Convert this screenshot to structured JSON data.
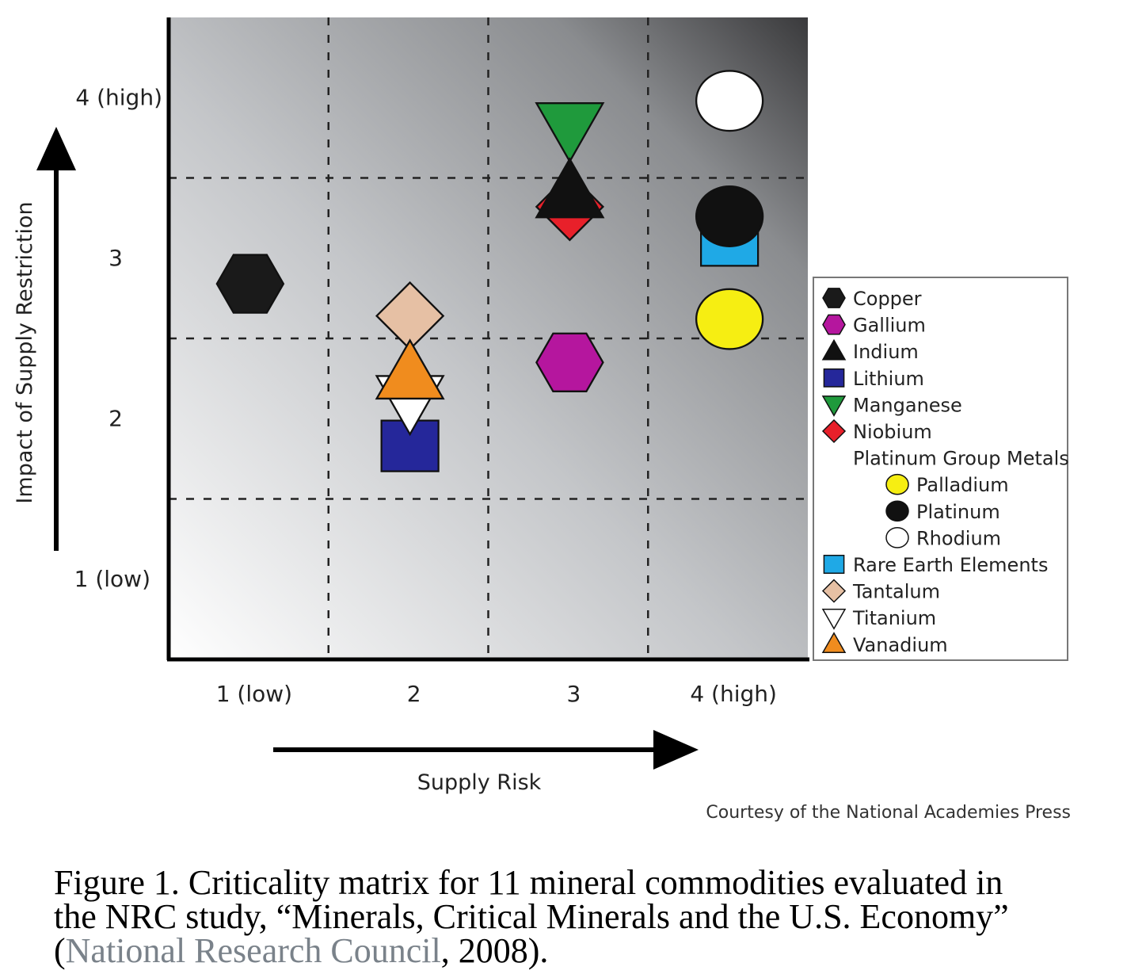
{
  "chart_data": {
    "type": "scatter",
    "xlabel": "Supply Risk",
    "ylabel": "Impact of Supply Restriction",
    "xlim": [
      0.5,
      4.5
    ],
    "ylim": [
      0.5,
      4.5
    ],
    "x_ticks": [
      {
        "value": 1,
        "label": "1 (low)"
      },
      {
        "value": 2,
        "label": "2"
      },
      {
        "value": 3,
        "label": "3"
      },
      {
        "value": 4,
        "label": "4 (high)"
      }
    ],
    "y_ticks": [
      {
        "value": 1,
        "label": "1 (low)"
      },
      {
        "value": 2,
        "label": "2"
      },
      {
        "value": 3,
        "label": "3"
      },
      {
        "value": 4,
        "label": "4 (high)"
      }
    ],
    "grid": true,
    "grid_style": "dashed",
    "background": "gradient light bottom-left to dark top-right",
    "legend_placement": "right",
    "points": [
      {
        "name": "Copper",
        "x": 1.0,
        "y": 2.87,
        "shape": "hexagon",
        "color": "#1a1a1a"
      },
      {
        "name": "Gallium",
        "x": 3.0,
        "y": 2.38,
        "shape": "hexagon",
        "color": "#b5169e"
      },
      {
        "name": "Indium",
        "x": 3.0,
        "y": 3.44,
        "shape": "triangle-up",
        "color": "#111111"
      },
      {
        "name": "Lithium",
        "x": 2.0,
        "y": 1.86,
        "shape": "square",
        "color": "#25279a"
      },
      {
        "name": "Manganese",
        "x": 3.0,
        "y": 3.84,
        "shape": "triangle-down",
        "color": "#1f9a3c"
      },
      {
        "name": "Niobium",
        "x": 3.0,
        "y": 3.35,
        "shape": "diamond",
        "color": "#e8202a"
      },
      {
        "name": "Palladium",
        "x": 4.0,
        "y": 2.65,
        "shape": "circle",
        "color": "#f6ee12"
      },
      {
        "name": "Platinum",
        "x": 4.0,
        "y": 3.29,
        "shape": "circle",
        "color": "#111111"
      },
      {
        "name": "Rhodium",
        "x": 4.0,
        "y": 4.01,
        "shape": "circle",
        "color": "#ffffff"
      },
      {
        "name": "Rare Earth Elements",
        "x": 4.0,
        "y": 3.14,
        "shape": "square",
        "color": "#1fa9e6"
      },
      {
        "name": "Tantalum",
        "x": 2.0,
        "y": 2.67,
        "shape": "diamond",
        "color": "#e6c0a4"
      },
      {
        "name": "Titanium",
        "x": 2.0,
        "y": 2.14,
        "shape": "triangle-down",
        "color": "#ffffff"
      },
      {
        "name": "Vanadium",
        "x": 2.0,
        "y": 2.31,
        "shape": "triangle-up",
        "color": "#f08c1e"
      }
    ],
    "draw_order": [
      "Copper",
      "Tantalum",
      "Lithium",
      "Titanium",
      "Vanadium",
      "Gallium",
      "Manganese",
      "Niobium",
      "Indium",
      "Rhodium",
      "Rare Earth Elements",
      "Platinum",
      "Palladium"
    ],
    "legend": [
      {
        "label": "Copper",
        "shape": "hexagon",
        "color": "#1a1a1a",
        "indent": false
      },
      {
        "label": "Gallium",
        "shape": "hexagon",
        "color": "#b5169e",
        "indent": false
      },
      {
        "label": "Indium",
        "shape": "triangle-up",
        "color": "#111111",
        "indent": false
      },
      {
        "label": "Lithium",
        "shape": "square",
        "color": "#25279a",
        "indent": false
      },
      {
        "label": "Manganese",
        "shape": "triangle-down",
        "color": "#1f9a3c",
        "indent": false
      },
      {
        "label": "Niobium",
        "shape": "diamond",
        "color": "#e8202a",
        "indent": false
      },
      {
        "label": "Platinum Group Metals",
        "shape": "none",
        "color": "",
        "indent": false
      },
      {
        "label": "Palladium",
        "shape": "circle",
        "color": "#f6ee12",
        "indent": true
      },
      {
        "label": "Platinum",
        "shape": "circle",
        "color": "#111111",
        "indent": true
      },
      {
        "label": "Rhodium",
        "shape": "circle",
        "color": "#ffffff",
        "indent": true
      },
      {
        "label": "Rare Earth Elements",
        "shape": "square",
        "color": "#1fa9e6",
        "indent": false
      },
      {
        "label": "Tantalum",
        "shape": "diamond",
        "color": "#e6c0a4",
        "indent": false
      },
      {
        "label": "Titanium",
        "shape": "triangle-down",
        "color": "#ffffff",
        "indent": false
      },
      {
        "label": "Vanadium",
        "shape": "triangle-up",
        "color": "#f08c1e",
        "indent": false
      }
    ]
  },
  "credit": "Courtesy of the National Academies Press",
  "caption": {
    "line1": "Figure 1. Criticality matrix for 11 mineral commodities evaluated in",
    "line2": "the NRC study, “Minerals, Critical Minerals and the U.S. Economy”",
    "open": "(",
    "citation": "National Research Council",
    "tail": ", 2008)."
  }
}
